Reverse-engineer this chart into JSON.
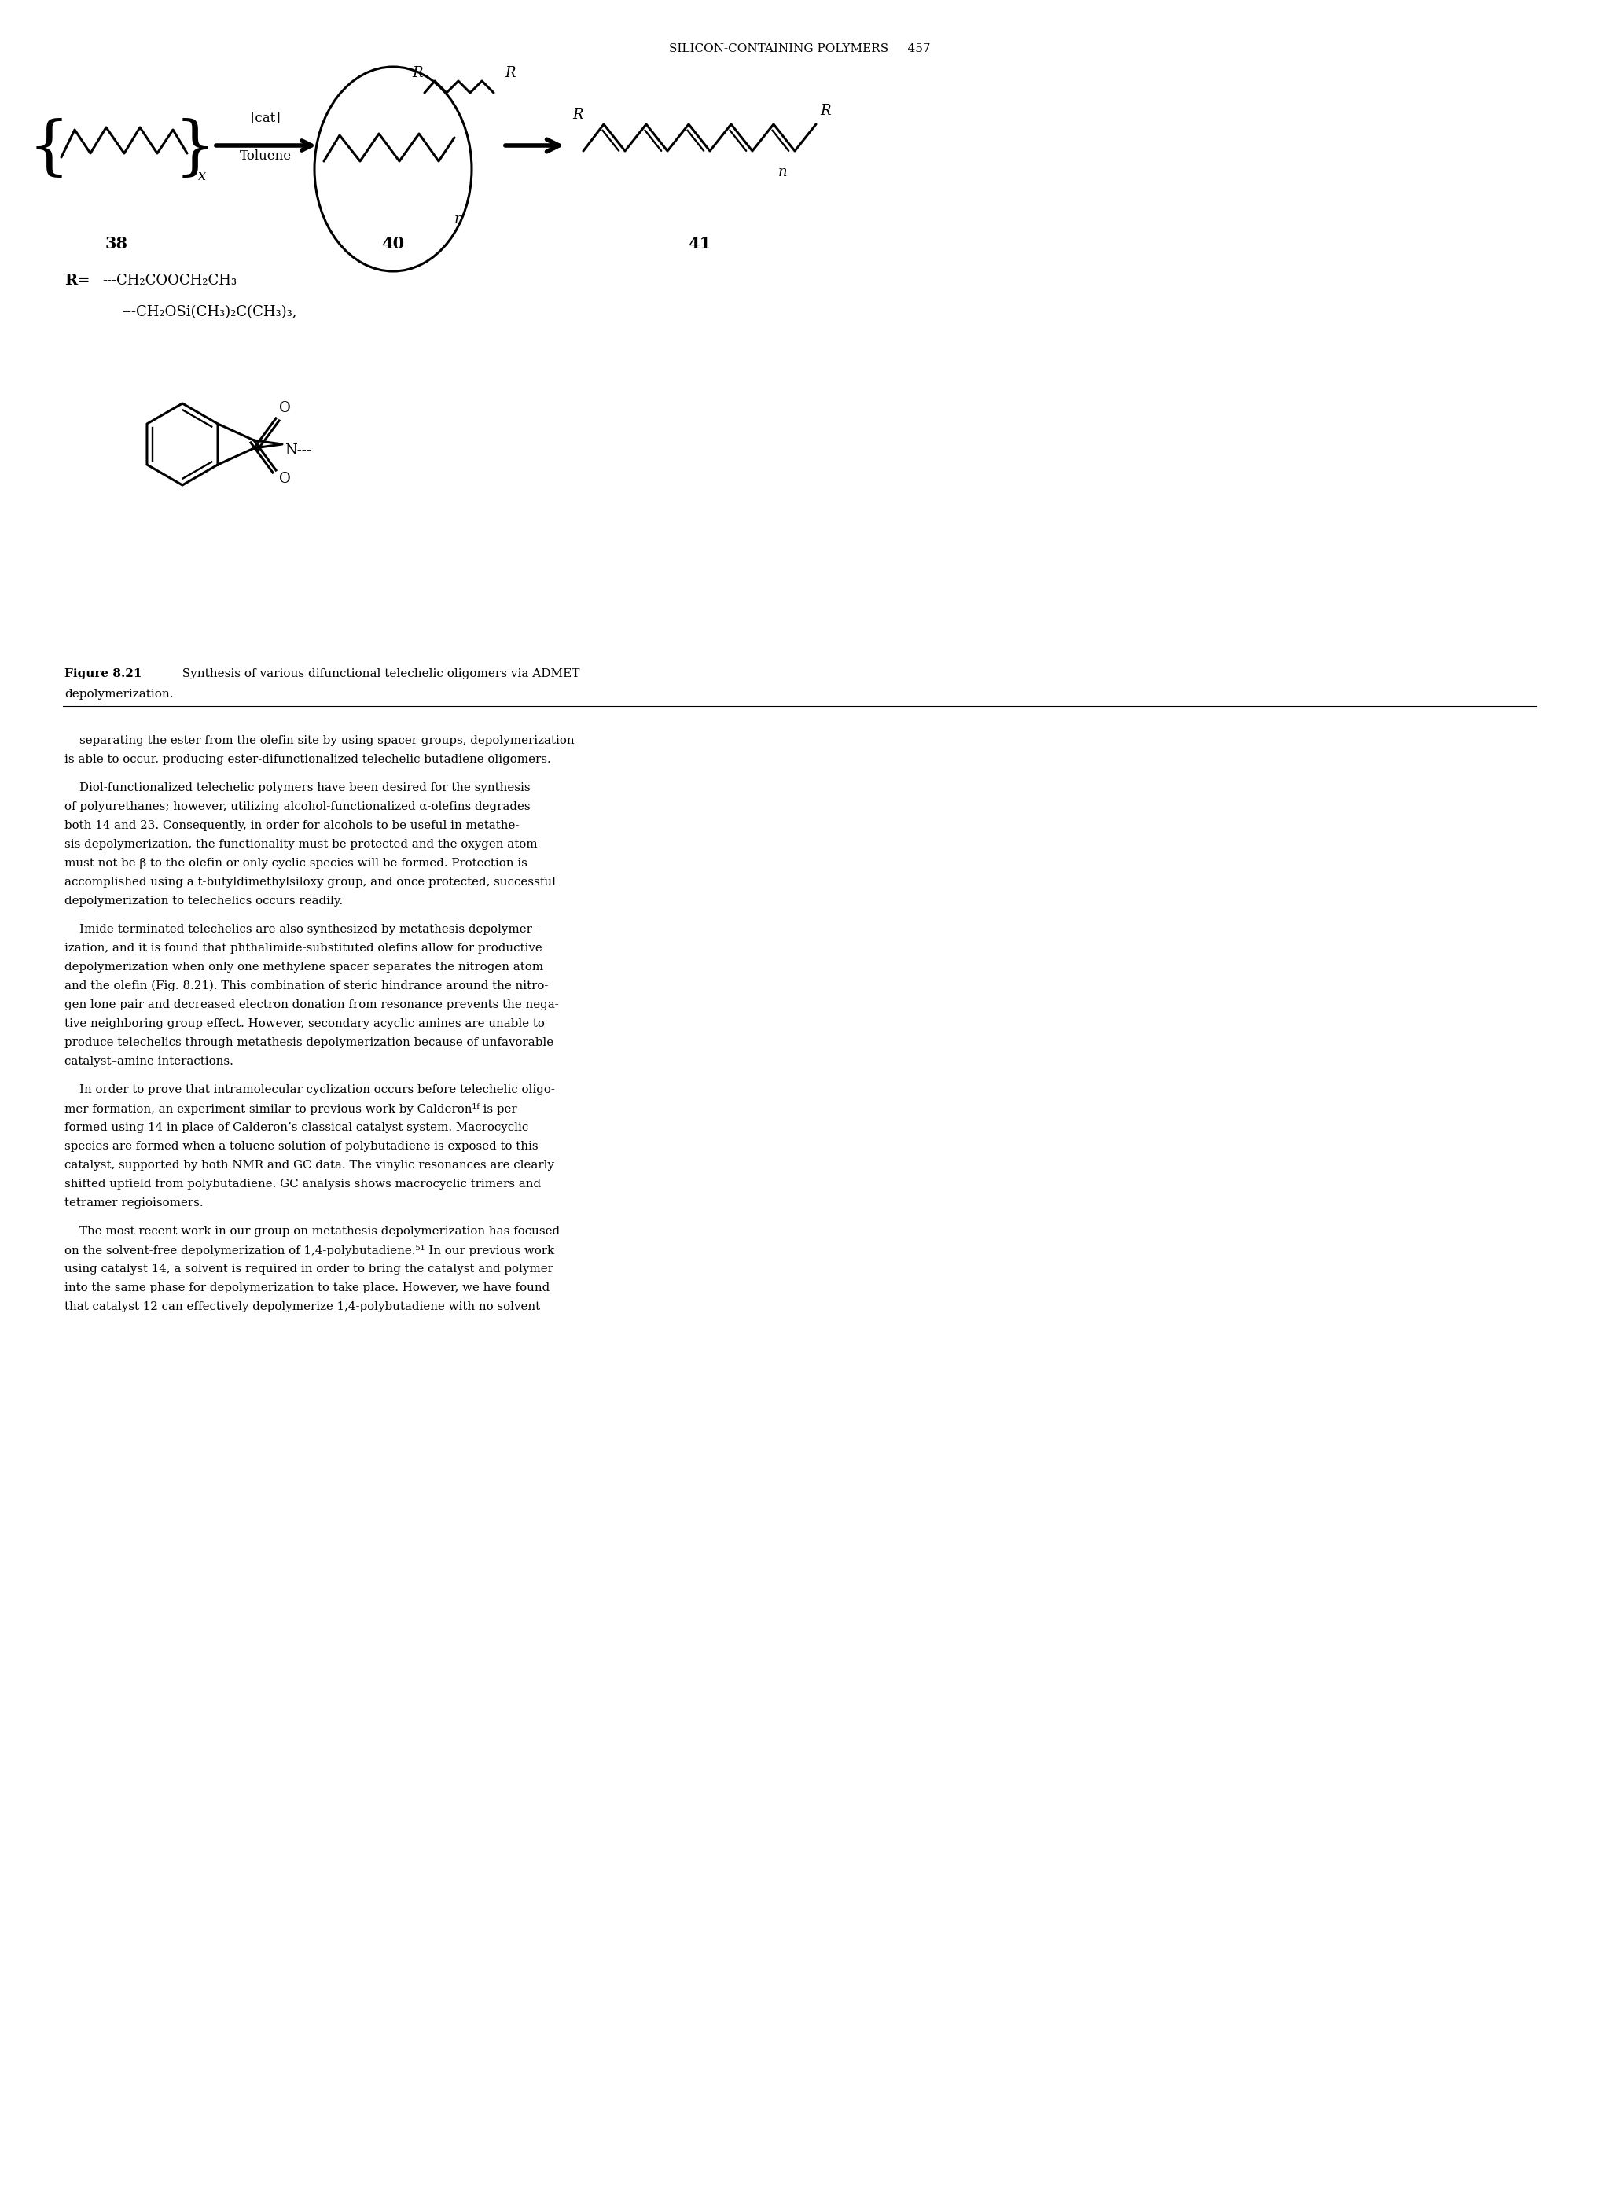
{
  "page_header": "SILICON-CONTAINING POLYMERS     457",
  "compound_labels": [
    "38",
    "40",
    "41"
  ],
  "r_group_line1": "---CH₂COOCH₂CH₃",
  "r_group_line2": "---CH₂OSi(CH₃)₂C(CH₃)₃,",
  "figure_caption_bold": "Figure 8.21",
  "figure_caption_rest": "  Synthesis of various difunctional telechelic oligomers via ADMET\ndepolymerization.",
  "bg_color": "#ffffff",
  "text_color": "#000000",
  "body_paragraphs": [
    "    separating the ester from the olefin site by using spacer groups, depolymerization\nis able to occur, producing ester-difunctionalized telechelic butadiene oligomers.",
    "    Diol-functionalized telechelic polymers have been desired for the synthesis\nof polyurethanes; however, utilizing alcohol-functionalized α-olefins degrades\nboth 14 and 23. Consequently, in order for alcohols to be useful in metathe-\nsis depolymerization, the functionality must be protected and the oxygen atom\nmust not be β to the olefin or only cyclic species will be formed. Protection is\naccomplished using a t-butyldimethylsiloxy group, and once protected, successful\ndepolymerization to telechelics occurs readily.",
    "    Imide-terminated telechelics are also synthesized by metathesis depolymer-\nization, and it is found that phthalimide-substituted olefins allow for productive\ndepolymerization when only one methylene spacer separates the nitrogen atom\nand the olefin (Fig. 8.21). This combination of steric hindrance around the nitro-\ngen lone pair and decreased electron donation from resonance prevents the nega-\ntive neighboring group effect. However, secondary acyclic amines are unable to\nproduce telechelics through metathesis depolymerization because of unfavorable\ncatalyst–amine interactions.",
    "    In order to prove that intramolecular cyclization occurs before telechelic oligo-\nmer formation, an experiment similar to previous work by Calderon¹ᶠ is per-\nformed using 14 in place of Calderon’s classical catalyst system. Macrocyclic\nspecies are formed when a toluene solution of polybutadiene is exposed to this\ncatalyst, supported by both NMR and GC data. The vinylic resonances are clearly\nshifted upfield from polybutadiene. GC analysis shows macrocyclic trimers and\ntetramer regioisomers.",
    "    The most recent work in our group on metathesis depolymerization has focused\non the solvent-free depolymerization of 1,4-polybutadiene.⁵¹ In our previous work\nusing catalyst 14, a solvent is required in order to bring the catalyst and polymer\ninto the same phase for depolymerization to take place. However, we have found\nthat catalyst 12 can effectively depolymerize 1,4-polybutadiene with no solvent"
  ]
}
